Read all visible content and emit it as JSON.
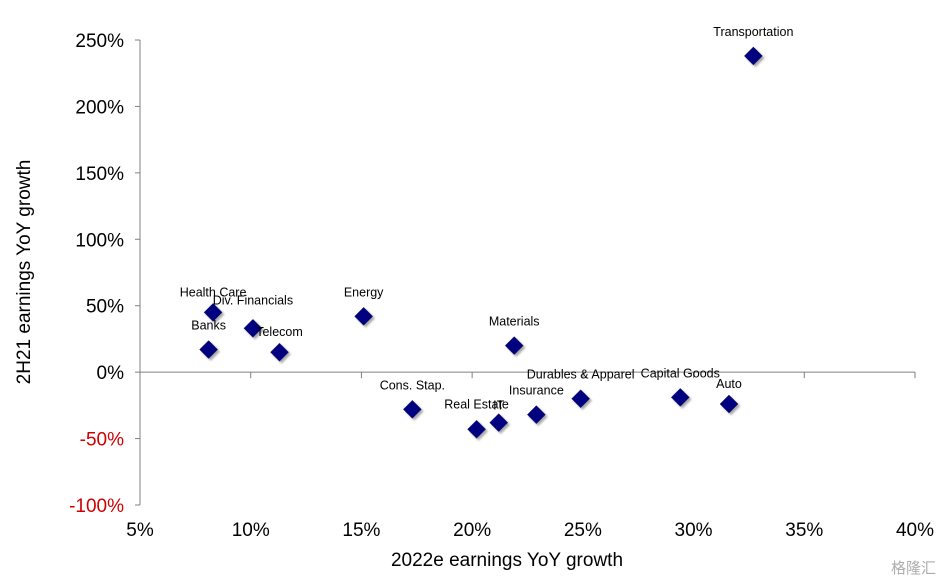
{
  "watermark": "格隆汇",
  "chart_data": {
    "type": "scatter",
    "xlabel": "2022e earnings YoY growth",
    "ylabel": "2H21 earnings YoY growth",
    "xlim": [
      5,
      40
    ],
    "ylim": [
      -100,
      250
    ],
    "x_ticks": [
      5,
      10,
      15,
      20,
      25,
      30,
      35,
      40
    ],
    "x_tick_labels": [
      "5%",
      "10%",
      "15%",
      "20%",
      "25%",
      "30%",
      "35%",
      "40%"
    ],
    "y_ticks": [
      250,
      200,
      150,
      100,
      50,
      0,
      -50,
      -100
    ],
    "y_tick_labels": [
      "250%",
      "200%",
      "150%",
      "100%",
      "50%",
      "0%",
      "-50%",
      "-100%"
    ],
    "negative_tick_color": "#d00000",
    "marker": "diamond",
    "marker_color": "#000080",
    "grid": false,
    "points": [
      {
        "label": "Transportation",
        "x": 32.7,
        "y": 238
      },
      {
        "label": "Health Care",
        "x": 8.3,
        "y": 45
      },
      {
        "label": "Div. Financials",
        "x": 10.1,
        "y": 33
      },
      {
        "label": "Banks",
        "x": 8.1,
        "y": 17
      },
      {
        "label": "Telecom",
        "x": 11.3,
        "y": 15
      },
      {
        "label": "Energy",
        "x": 15.1,
        "y": 42
      },
      {
        "label": "Materials",
        "x": 21.9,
        "y": 20
      },
      {
        "label": "Cons. Stap.",
        "x": 17.3,
        "y": -28
      },
      {
        "label": "Real Estate",
        "x": 20.2,
        "y": -43
      },
      {
        "label": "IT",
        "x": 21.2,
        "y": -38
      },
      {
        "label": "Insurance",
        "x": 22.9,
        "y": -32
      },
      {
        "label": "Durables & Apparel",
        "x": 24.9,
        "y": -20
      },
      {
        "label": "Capital Goods",
        "x": 29.4,
        "y": -19
      },
      {
        "label": "Auto",
        "x": 31.6,
        "y": -24
      }
    ]
  }
}
